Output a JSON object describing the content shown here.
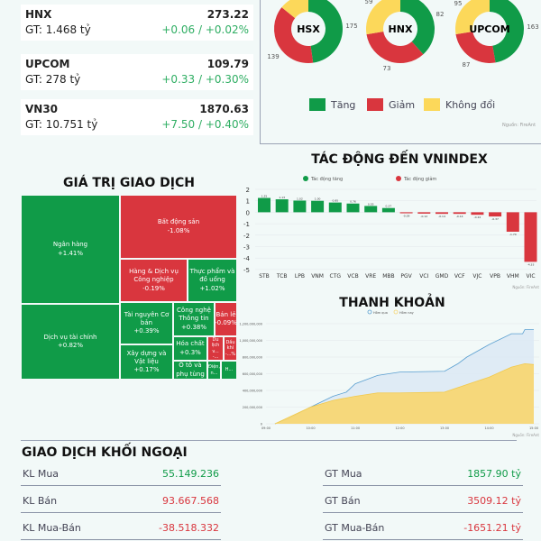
{
  "indices": [
    {
      "name": "HNX",
      "gt": "GT: 1.468 tỷ",
      "value": "273.22",
      "change": "+0.06 / +0.02%"
    },
    {
      "name": "UPCOM",
      "gt": "GT: 278 tỷ",
      "value": "109.79",
      "change": "+0.33 / +0.30%"
    },
    {
      "name": "VN30",
      "gt": "GT: 10.751 tỷ",
      "value": "1870.63",
      "change": "+7.50 / +0.40%"
    }
  ],
  "breadth": {
    "colors": {
      "up": "#109b48",
      "down": "#d9363e",
      "flat": "#fcd85a"
    },
    "legend": {
      "up": "Tăng",
      "down": "Giảm",
      "flat": "Không đổi"
    },
    "source": "Nguồn: FireAnt",
    "exchanges": [
      {
        "name": "HSX",
        "up": 175,
        "down": 139,
        "flat": 52,
        "up_label": "175",
        "down_label": "139",
        "flat_label": ""
      },
      {
        "name": "HNX",
        "up": 82,
        "down": 73,
        "flat": 59,
        "up_label": "82",
        "down_label": "73",
        "flat_label": "59"
      },
      {
        "name": "UPCOM",
        "up": 163,
        "down": 87,
        "flat": 95,
        "up_label": "163",
        "down_label": "87",
        "flat_label": "95"
      }
    ]
  },
  "treemap": {
    "title": "GIÁ TRỊ GIAO DỊCH",
    "items": [
      {
        "name": "Ngân hàng",
        "change": "+1.41%",
        "dir": "up"
      },
      {
        "name": "Dịch vụ tài chính",
        "change": "+0.82%",
        "dir": "up"
      },
      {
        "name": "Bất động sản",
        "change": "-1.08%",
        "dir": "down"
      },
      {
        "name": "Hàng & Dịch vụ Công nghiệp",
        "change": "-0.19%",
        "dir": "down"
      },
      {
        "name": "Thực phẩm và đồ uống",
        "change": "+1.02%",
        "dir": "up"
      },
      {
        "name": "Tài nguyên Cơ bản",
        "change": "+0.39%",
        "dir": "up"
      },
      {
        "name": "Xây dựng và Vật liệu",
        "change": "+0.17%",
        "dir": "up"
      },
      {
        "name": "Công nghệ Thông tin",
        "change": "+0.38%",
        "dir": "up"
      },
      {
        "name": "Bán lẻ",
        "change": "-0.09%",
        "dir": "down"
      },
      {
        "name": "Hóa chất",
        "change": "+0.3%",
        "dir": "up"
      },
      {
        "name": "Ô tô và phụ tùng",
        "change": "",
        "dir": "up"
      },
      {
        "name": "Du lịch v...",
        "change": "-...",
        "dir": "down"
      },
      {
        "name": "Dầu khí",
        "change": "-...%",
        "dir": "down"
      },
      {
        "name": "Điện, n...",
        "change": "",
        "dir": "up"
      },
      {
        "name": "H...",
        "change": "",
        "dir": "up"
      }
    ]
  },
  "chart_data": [
    {
      "type": "bar",
      "title": "TÁC ĐỘNG ĐẾN VNINDEX",
      "legend": [
        {
          "name": "Tác động tăng",
          "color": "#109b48"
        },
        {
          "name": "Tác động giảm",
          "color": "#d9363e"
        }
      ],
      "categories": [
        "STB",
        "TCB",
        "LPB",
        "VNM",
        "CTG",
        "VCB",
        "VRE",
        "MBB",
        "PGV",
        "VCI",
        "GMD",
        "VCF",
        "VJC",
        "VPB",
        "VHM",
        "VIC"
      ],
      "values": [
        1.25,
        1.13,
        1.02,
        1.0,
        0.85,
        0.76,
        0.55,
        0.37,
        -0.09,
        -0.12,
        -0.14,
        -0.14,
        -0.22,
        -0.37,
        -1.7,
        -4.33
      ],
      "ylim": [
        -5,
        2
      ],
      "yticks": [
        "2",
        "1",
        "0",
        "-1",
        "-2",
        "-3",
        "-4",
        "-5"
      ],
      "grid": true,
      "legend_position": "top",
      "source": "Nguồn: FireAnt"
    },
    {
      "type": "area",
      "title": "THANH KHOẢN",
      "xticks": [
        "09:00",
        "10:00",
        "11:00",
        "12:00",
        "13:00",
        "14:00",
        "15:00"
      ],
      "yticks": [
        "0",
        "200,000,000",
        "400,000,000",
        "600,000,000",
        "800,000,000",
        "1,000,000,000",
        "1,200,000,000"
      ],
      "ylim": [
        0,
        1200000000
      ],
      "legend_position": "top",
      "source": "Nguồn: FireAnt",
      "series": [
        {
          "name": "Hôm qua",
          "color": "#5a9fd0",
          "x": [
            "09:12",
            "09:30",
            "10:00",
            "10:30",
            "10:48",
            "11:00",
            "11:30",
            "12:00",
            "13:00",
            "13:18",
            "13:30",
            "14:00",
            "14:30",
            "14:45",
            "14:48",
            "15:00"
          ],
          "values": [
            0,
            60000000,
            200000000,
            330000000,
            380000000,
            480000000,
            580000000,
            620000000,
            630000000,
            720000000,
            800000000,
            950000000,
            1080000000,
            1080000000,
            1130000000,
            1130000000
          ]
        },
        {
          "name": "Hôm nay",
          "color": "#f7d774",
          "x": [
            "09:12",
            "10:00",
            "10:30",
            "11:00",
            "11:30",
            "12:00",
            "13:00",
            "13:30",
            "14:00",
            "14:30",
            "14:48",
            "15:00"
          ],
          "values": [
            0,
            200000000,
            280000000,
            330000000,
            370000000,
            370000000,
            380000000,
            470000000,
            560000000,
            680000000,
            720000000,
            710000000
          ]
        }
      ]
    }
  ],
  "foreign": {
    "title": "GIAO DỊCH KHỐI NGOẠI",
    "left": [
      {
        "label": "KL Mua",
        "value": "55.149.236",
        "color": "#109b48"
      },
      {
        "label": "KL Bán",
        "value": "93.667.568",
        "color": "#d9363e"
      },
      {
        "label": "KL Mua-Bán",
        "value": "-38.518.332",
        "color": "#d9363e"
      }
    ],
    "right": [
      {
        "label": "GT Mua",
        "value": "1857.90 tỷ",
        "color": "#109b48"
      },
      {
        "label": "GT Bán",
        "value": "3509.12 tỷ",
        "color": "#d9363e"
      },
      {
        "label": "GT Mua-Bán",
        "value": "-1651.21 tỷ",
        "color": "#d9363e"
      }
    ]
  }
}
